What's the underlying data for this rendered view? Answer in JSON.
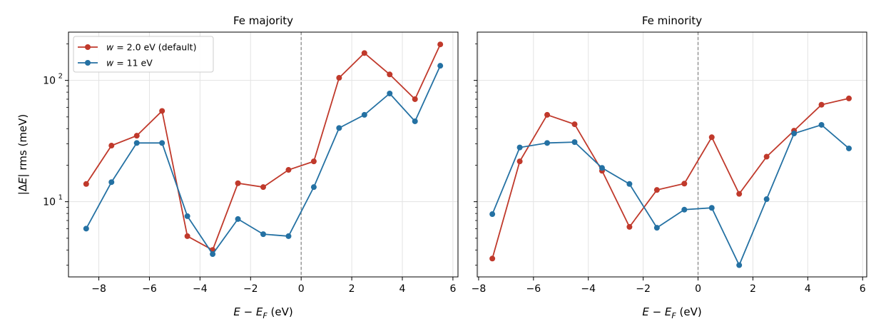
{
  "chart_data": [
    {
      "type": "line",
      "title": "Fe  majority",
      "xlabel": "E − E_F  (eV)",
      "ylabel": "|ΔE| rms  (meV)",
      "yscale": "log",
      "xlim": [
        -9.2,
        6.2
      ],
      "ylim": [
        2.4,
        250
      ],
      "xticks": [
        -8,
        -6,
        -4,
        -2,
        0,
        2,
        4,
        6
      ],
      "xtick_labels": [
        "−8",
        "−6",
        "−4",
        "−2",
        "0",
        "2",
        "4",
        "6"
      ],
      "yticks_major": [
        10,
        100
      ],
      "ytick_labels": [
        "10",
        "10"
      ],
      "ytick_exponents": [
        "1",
        "2"
      ],
      "vline_x": 0,
      "grid": true,
      "legend": {
        "placement": "top-left"
      },
      "series": [
        {
          "name": "w = 2.0 eV (default)",
          "name_var": "w",
          "name_rest": " = 2.0 eV (default)",
          "color": "#c0392b",
          "x": [
            -8.5,
            -7.5,
            -6.5,
            -5.5,
            -4.5,
            -3.5,
            -2.5,
            -1.5,
            -0.5,
            0.5,
            1.5,
            2.5,
            3.5,
            4.5,
            5.5
          ],
          "y": [
            14,
            29,
            35,
            56,
            5.2,
            4.0,
            14.2,
            13.2,
            18.3,
            21.5,
            105,
            168,
            112,
            70,
            198
          ]
        },
        {
          "name": "w = 11 eV",
          "name_var": "w",
          "name_rest": " = 11 eV",
          "color": "#2471a3",
          "x": [
            -8.5,
            -7.5,
            -6.5,
            -5.5,
            -4.5,
            -3.5,
            -2.5,
            -1.5,
            -0.5,
            0.5,
            1.5,
            2.5,
            3.5,
            4.5,
            5.5
          ],
          "y": [
            6.0,
            14.5,
            30.5,
            30.5,
            7.6,
            3.7,
            7.2,
            5.4,
            5.2,
            13.2,
            40.5,
            52,
            78,
            46,
            132
          ]
        }
      ]
    },
    {
      "type": "line",
      "title": "Fe  minority",
      "xlabel": "E − E_F  (eV)",
      "ylabel": "",
      "yscale": "log",
      "xlim": [
        -8.05,
        6.15
      ],
      "ylim": [
        2.4,
        250
      ],
      "xticks": [
        -8,
        -6,
        -4,
        -2,
        0,
        2,
        4,
        6
      ],
      "xtick_labels": [
        "−8",
        "−6",
        "−4",
        "−2",
        "0",
        "2",
        "4",
        "6"
      ],
      "vline_x": 0,
      "grid": true,
      "series": [
        {
          "name": "w = 2.0 eV (default)",
          "color": "#c0392b",
          "x": [
            -7.5,
            -6.5,
            -5.5,
            -4.5,
            -3.5,
            -2.5,
            -1.5,
            -0.5,
            0.5,
            1.5,
            2.5,
            3.5,
            4.5,
            5.5
          ],
          "y": [
            3.4,
            21.5,
            52,
            43.5,
            18.0,
            6.2,
            12.5,
            14.1,
            34,
            11.6,
            23.5,
            38.5,
            63,
            71
          ]
        },
        {
          "name": "w = 11 eV",
          "color": "#2471a3",
          "x": [
            -7.5,
            -6.5,
            -5.5,
            -4.5,
            -3.5,
            -2.5,
            -1.5,
            -0.5,
            0.5,
            1.5,
            2.5,
            3.5,
            4.5,
            5.5
          ],
          "y": [
            7.9,
            28,
            30.5,
            31,
            19,
            14,
            6.1,
            8.6,
            8.9,
            3.0,
            10.5,
            36.5,
            43,
            27.5
          ]
        }
      ]
    }
  ]
}
